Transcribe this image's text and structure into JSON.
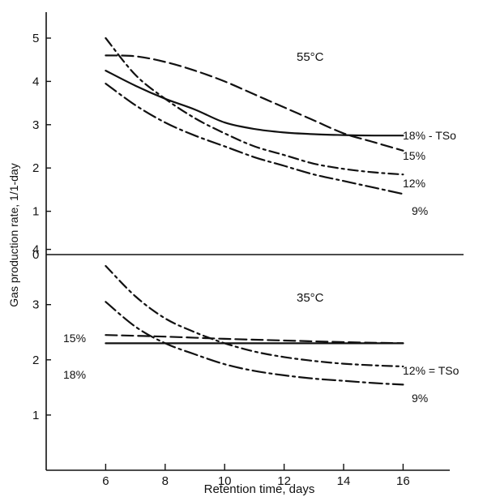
{
  "chart_data": {
    "type": "line",
    "xlabel": "Retention time, days",
    "ylabel": "Gas production rate, 1/1-day",
    "x_ticks": [
      "6",
      "8",
      "10",
      "12",
      "14",
      "16"
    ],
    "xlim": [
      4,
      18
    ],
    "panels": [
      {
        "label": "55°C",
        "y_ticks": [
          "5",
          "4",
          "3",
          "2",
          "1"
        ],
        "ylim": [
          0,
          5.8
        ],
        "series": [
          {
            "name": "18% - TSo",
            "dash": "solid",
            "x": [
              6,
              7,
              8,
              9,
              10,
              11,
              12,
              13,
              14,
              15,
              16
            ],
            "y": [
              4.25,
              3.9,
              3.6,
              3.35,
              3.05,
              2.9,
              2.82,
              2.78,
              2.76,
              2.75,
              2.75
            ]
          },
          {
            "name": "15%",
            "dash": "dash-long",
            "x": [
              6,
              7,
              8,
              9,
              10,
              11,
              12,
              13,
              14,
              15,
              16
            ],
            "y": [
              4.6,
              4.58,
              4.45,
              4.25,
              4.0,
              3.7,
              3.4,
              3.1,
              2.8,
              2.6,
              2.4
            ]
          },
          {
            "name": "12%",
            "dash": "dash-dot",
            "x": [
              6,
              7,
              8,
              9,
              10,
              11,
              12,
              13,
              14,
              15,
              16
            ],
            "y": [
              5.0,
              4.15,
              3.6,
              3.15,
              2.8,
              2.5,
              2.3,
              2.1,
              1.98,
              1.9,
              1.85
            ]
          },
          {
            "name": "9%",
            "dash": "dash-dot-long",
            "x": [
              6,
              7,
              8,
              9,
              10,
              11,
              12,
              13,
              14,
              15,
              16
            ],
            "y": [
              3.95,
              3.45,
              3.05,
              2.75,
              2.5,
              2.25,
              2.05,
              1.85,
              1.7,
              1.55,
              1.4
            ]
          }
        ]
      },
      {
        "label": "35°C",
        "y_ticks": [
          "4",
          "3",
          "2",
          "1"
        ],
        "ylim": [
          0,
          4.1
        ],
        "series": [
          {
            "name": "12% = TSo",
            "dash": "dash-dot",
            "x": [
              6,
              7,
              8,
              9,
              10,
              11,
              12,
              13,
              14,
              15,
              16
            ],
            "y": [
              3.7,
              3.15,
              2.75,
              2.5,
              2.3,
              2.15,
              2.05,
              1.98,
              1.93,
              1.9,
              1.88
            ]
          },
          {
            "name": "15%",
            "dash": "dash-long",
            "x": [
              6,
              8,
              10,
              12,
              14,
              16
            ],
            "y": [
              2.45,
              2.42,
              2.38,
              2.35,
              2.32,
              2.3
            ]
          },
          {
            "name": "18%",
            "dash": "solid",
            "x": [
              6,
              8,
              10,
              12,
              14,
              16
            ],
            "y": [
              2.3,
              2.3,
              2.3,
              2.3,
              2.3,
              2.3
            ]
          },
          {
            "name": "9%",
            "dash": "dash-dot-long",
            "x": [
              6,
              7,
              8,
              9,
              10,
              11,
              12,
              13,
              14,
              15,
              16
            ],
            "y": [
              3.05,
              2.6,
              2.3,
              2.1,
              1.92,
              1.8,
              1.72,
              1.66,
              1.62,
              1.58,
              1.55
            ]
          }
        ]
      }
    ]
  }
}
